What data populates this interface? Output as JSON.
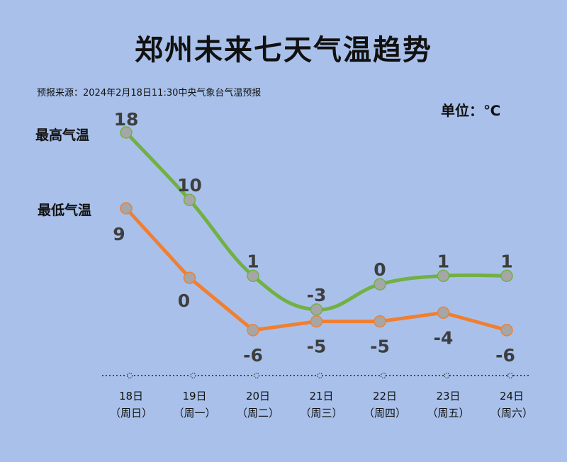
{
  "title": "郑州未来七天气温趋势",
  "source": "预报来源：2024年2月18日11:30中央气象台气温预报",
  "unit": "单位：℃",
  "chart_data": {
    "type": "line",
    "categories": [
      "18日",
      "19日",
      "20日",
      "21日",
      "22日",
      "23日",
      "24日"
    ],
    "weekdays": [
      "（周日）",
      "（周一）",
      "（周二）",
      "（周三）",
      "（周四）",
      "（周五）",
      "（周六）"
    ],
    "series": [
      {
        "name": "最高气温",
        "values": [
          18,
          10,
          1,
          -3,
          0,
          1,
          1
        ],
        "color": "#72b043",
        "smooth": true
      },
      {
        "name": "最低气温",
        "values": [
          9,
          0,
          -6,
          -5,
          -5,
          -4,
          -6
        ],
        "color": "#f07f32",
        "smooth": false
      }
    ],
    "marker_color": "#a6a6a6",
    "label_color": "#3e3e3e",
    "grid": false
  }
}
